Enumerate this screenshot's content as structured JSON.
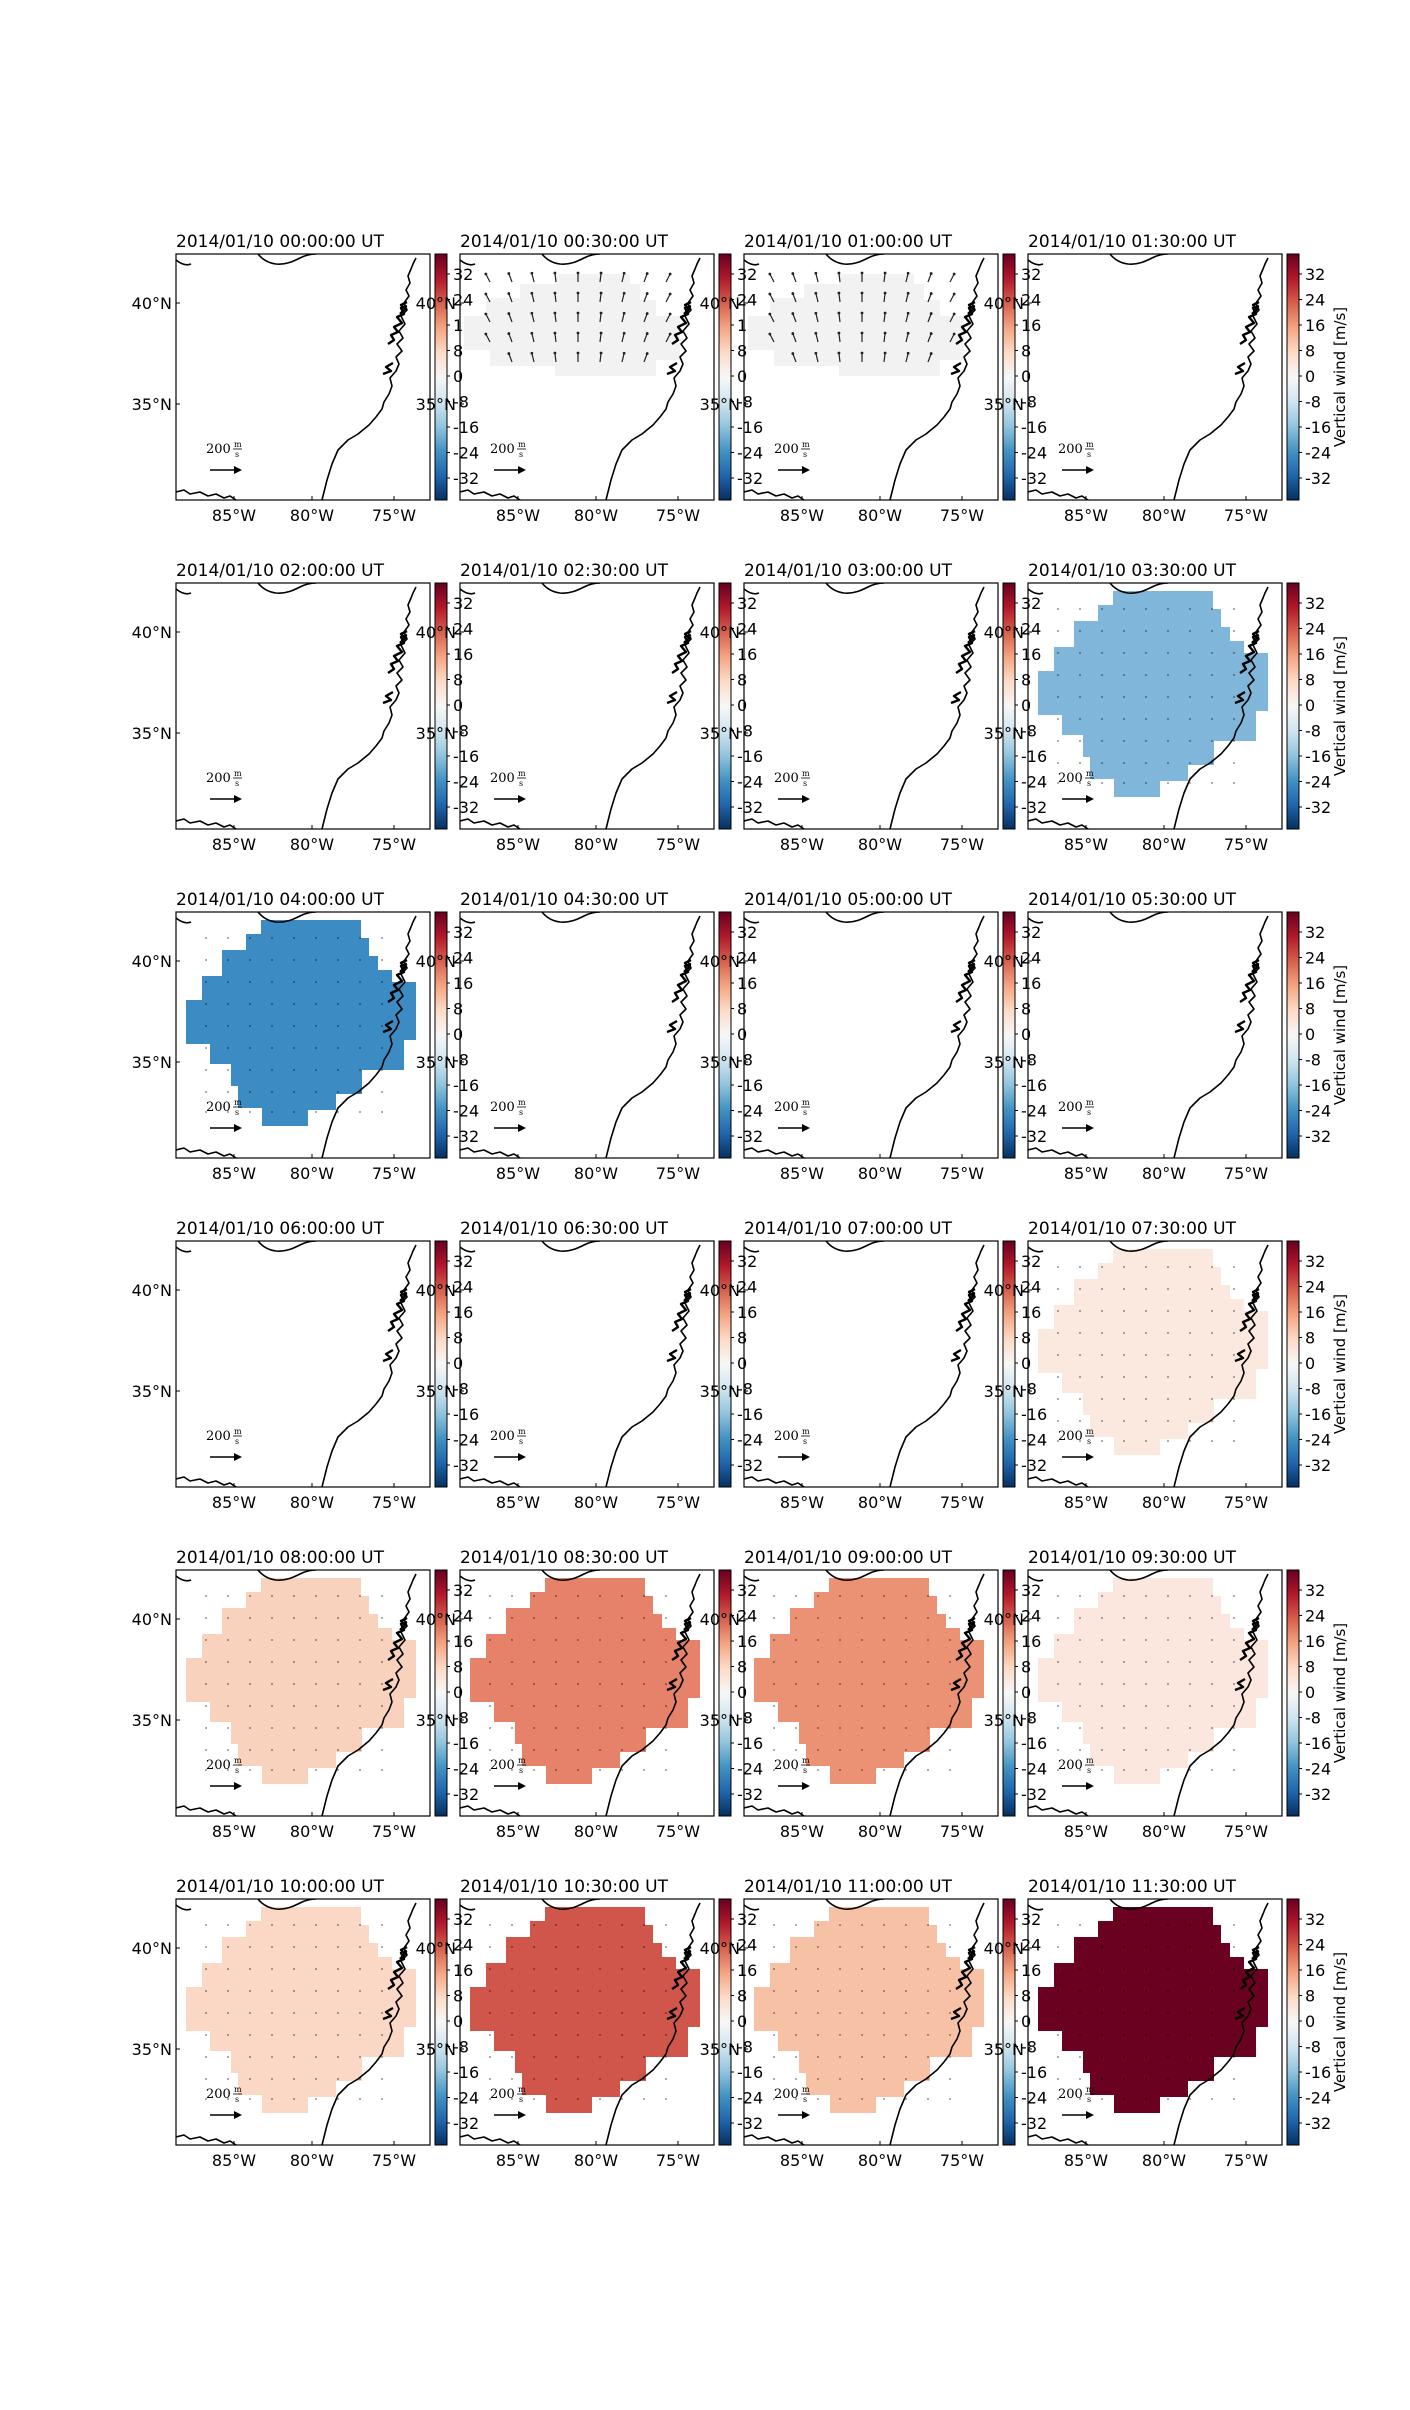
{
  "figure": {
    "colorbar": {
      "ticks": [
        "32",
        "24",
        "16",
        "8",
        "0",
        "-8",
        "-16",
        "-24",
        "-32"
      ],
      "label": "Vertical wind [m/s]",
      "cmap": [
        "#67001f",
        "#b2182b",
        "#d6604d",
        "#f4a582",
        "#fddbc7",
        "#f7f7f7",
        "#d1e5f0",
        "#92c5de",
        "#4393c3",
        "#2166ac",
        "#053061"
      ]
    },
    "axes": {
      "lon_ticks": [
        "85°W",
        "80°W",
        "75°W"
      ],
      "lat_ticks": [
        "40°N",
        "35°N"
      ]
    },
    "scale_arrow": {
      "value": "200",
      "unit_num": "m",
      "unit_den": "s"
    },
    "panels": [
      {
        "title": "2014/01/10 00:00:00 UT",
        "state": "none"
      },
      {
        "title": "2014/01/10 00:30:00 UT",
        "state": "arrows",
        "color": "#f2f2f2",
        "extent": "partial"
      },
      {
        "title": "2014/01/10 01:00:00 UT",
        "state": "arrows",
        "color": "#f2f2f2",
        "extent": "partial"
      },
      {
        "title": "2014/01/10 01:30:00 UT",
        "state": "none"
      },
      {
        "title": "2014/01/10 02:00:00 UT",
        "state": "none"
      },
      {
        "title": "2014/01/10 02:30:00 UT",
        "state": "none"
      },
      {
        "title": "2014/01/10 03:00:00 UT",
        "state": "none"
      },
      {
        "title": "2014/01/10 03:30:00 UT",
        "state": "fill",
        "color": "#7fb6d9",
        "extent": "full"
      },
      {
        "title": "2014/01/10 04:00:00 UT",
        "state": "fill",
        "color": "#3c8cc3",
        "extent": "full"
      },
      {
        "title": "2014/01/10 04:30:00 UT",
        "state": "none"
      },
      {
        "title": "2014/01/10 05:00:00 UT",
        "state": "none"
      },
      {
        "title": "2014/01/10 05:30:00 UT",
        "state": "none"
      },
      {
        "title": "2014/01/10 06:00:00 UT",
        "state": "none"
      },
      {
        "title": "2014/01/10 06:30:00 UT",
        "state": "none"
      },
      {
        "title": "2014/01/10 07:00:00 UT",
        "state": "none"
      },
      {
        "title": "2014/01/10 07:30:00 UT",
        "state": "fill",
        "color": "#fbe9df",
        "extent": "full"
      },
      {
        "title": "2014/01/10 08:00:00 UT",
        "state": "fill",
        "color": "#f9d2bd",
        "extent": "full"
      },
      {
        "title": "2014/01/10 08:30:00 UT",
        "state": "fill",
        "color": "#e7826a",
        "extent": "full"
      },
      {
        "title": "2014/01/10 09:00:00 UT",
        "state": "fill",
        "color": "#ec9274",
        "extent": "full"
      },
      {
        "title": "2014/01/10 09:30:00 UT",
        "state": "fill",
        "color": "#fbe7dd",
        "extent": "full"
      },
      {
        "title": "2014/01/10 10:00:00 UT",
        "state": "fill",
        "color": "#fad8c5",
        "extent": "full"
      },
      {
        "title": "2014/01/10 10:30:00 UT",
        "state": "fill",
        "color": "#d0554a",
        "extent": "full"
      },
      {
        "title": "2014/01/10 11:00:00 UT",
        "state": "fill",
        "color": "#f7c1a5",
        "extent": "full"
      },
      {
        "title": "2014/01/10 11:30:00 UT",
        "state": "fill",
        "color": "#6b0120",
        "extent": "full"
      }
    ]
  }
}
